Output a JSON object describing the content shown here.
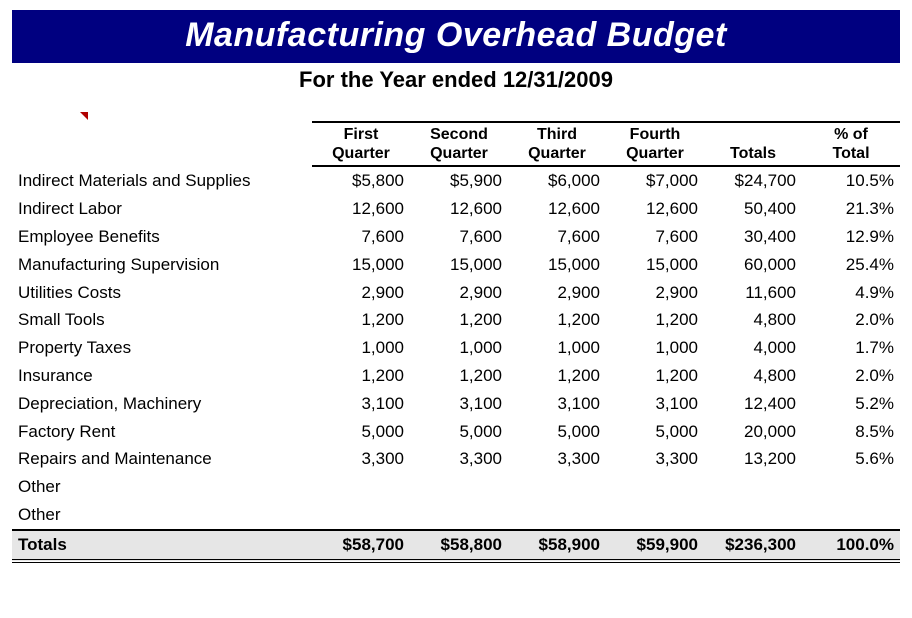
{
  "title": "Manufacturing Overhead Budget",
  "subtitle": "For the Year ended 12/31/2009",
  "colors": {
    "title_bg": "#000080",
    "title_fg": "#ffffff",
    "totals_bg": "#e6e6e6",
    "border": "#000000",
    "comment_marker": "#b00000"
  },
  "table": {
    "type": "table",
    "header": {
      "q1_l1": "First",
      "q1_l2": "Quarter",
      "q2_l1": "Second",
      "q2_l2": "Quarter",
      "q3_l1": "Third",
      "q3_l2": "Quarter",
      "q4_l1": "Fourth",
      "q4_l2": "Quarter",
      "totals": "Totals",
      "pct_l1": "% of",
      "pct_l2": "Total"
    },
    "rows": [
      {
        "label": "Indirect Materials and Supplies",
        "q1": "$5,800",
        "q2": "$5,900",
        "q3": "$6,000",
        "q4": "$7,000",
        "total": "$24,700",
        "pct": "10.5%"
      },
      {
        "label": "Indirect Labor",
        "q1": "12,600",
        "q2": "12,600",
        "q3": "12,600",
        "q4": "12,600",
        "total": "50,400",
        "pct": "21.3%"
      },
      {
        "label": "Employee Benefits",
        "q1": "7,600",
        "q2": "7,600",
        "q3": "7,600",
        "q4": "7,600",
        "total": "30,400",
        "pct": "12.9%"
      },
      {
        "label": "Manufacturing Supervision",
        "q1": "15,000",
        "q2": "15,000",
        "q3": "15,000",
        "q4": "15,000",
        "total": "60,000",
        "pct": "25.4%"
      },
      {
        "label": "Utilities Costs",
        "q1": "2,900",
        "q2": "2,900",
        "q3": "2,900",
        "q4": "2,900",
        "total": "11,600",
        "pct": "4.9%"
      },
      {
        "label": "Small Tools",
        "q1": "1,200",
        "q2": "1,200",
        "q3": "1,200",
        "q4": "1,200",
        "total": "4,800",
        "pct": "2.0%"
      },
      {
        "label": "Property Taxes",
        "q1": "1,000",
        "q2": "1,000",
        "q3": "1,000",
        "q4": "1,000",
        "total": "4,000",
        "pct": "1.7%"
      },
      {
        "label": "Insurance",
        "q1": "1,200",
        "q2": "1,200",
        "q3": "1,200",
        "q4": "1,200",
        "total": "4,800",
        "pct": "2.0%"
      },
      {
        "label": "Depreciation, Machinery",
        "q1": "3,100",
        "q2": "3,100",
        "q3": "3,100",
        "q4": "3,100",
        "total": "12,400",
        "pct": "5.2%"
      },
      {
        "label": "Factory Rent",
        "q1": "5,000",
        "q2": "5,000",
        "q3": "5,000",
        "q4": "5,000",
        "total": "20,000",
        "pct": "8.5%"
      },
      {
        "label": "Repairs and Maintenance",
        "q1": "3,300",
        "q2": "3,300",
        "q3": "3,300",
        "q4": "3,300",
        "total": "13,200",
        "pct": "5.6%"
      },
      {
        "label": "Other",
        "q1": "",
        "q2": "",
        "q3": "",
        "q4": "",
        "total": "",
        "pct": ""
      },
      {
        "label": "Other",
        "q1": "",
        "q2": "",
        "q3": "",
        "q4": "",
        "total": "",
        "pct": ""
      }
    ],
    "totals": {
      "label": "Totals",
      "q1": "$58,700",
      "q2": "$58,800",
      "q3": "$58,900",
      "q4": "$59,900",
      "total": "$236,300",
      "pct": "100.0%"
    }
  }
}
